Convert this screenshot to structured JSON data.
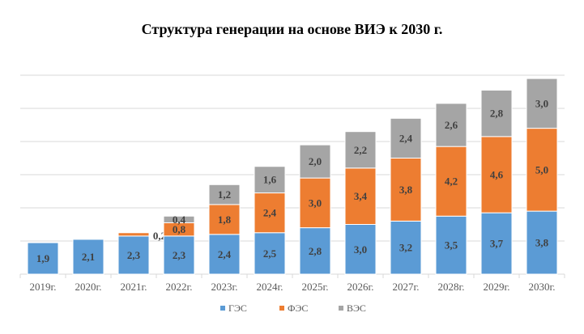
{
  "chart_data": {
    "type": "bar",
    "stacked": true,
    "title": "Структура генерации на основе ВИЭ к 2030 г.",
    "categories": [
      "2019г.",
      "2020г.",
      "2021г.",
      "2022г.",
      "2023г.",
      "2024г.",
      "2025г.",
      "2026г.",
      "2027г.",
      "2028г.",
      "2029г.",
      "2030г."
    ],
    "series": [
      {
        "name": "ГЭС",
        "color": "#5B9BD5",
        "values": [
          1.9,
          2.1,
          2.3,
          2.3,
          2.4,
          2.5,
          2.8,
          3.0,
          3.2,
          3.5,
          3.7,
          3.8
        ],
        "labels": [
          "1,9",
          "2,1",
          "2,3",
          "2,3",
          "2,4",
          "2,5",
          "2,8",
          "3,0",
          "3,2",
          "3,5",
          "3,7",
          "3,8"
        ]
      },
      {
        "name": "ФЭС",
        "color": "#ED7D31",
        "values": [
          0,
          0,
          0.2,
          0.8,
          1.8,
          2.4,
          3.0,
          3.4,
          3.8,
          4.2,
          4.6,
          5.0
        ],
        "labels": [
          "",
          "",
          "0,2",
          "0,8",
          "1,8",
          "2,4",
          "3,0",
          "3,4",
          "3,8",
          "4,2",
          "4,6",
          "5,0"
        ]
      },
      {
        "name": "ВЭС",
        "color": "#A5A5A5",
        "values": [
          0,
          0,
          0,
          0.4,
          1.2,
          1.6,
          2.0,
          2.2,
          2.4,
          2.6,
          2.8,
          3.0
        ],
        "labels": [
          "",
          "",
          "",
          "0,4",
          "1,2",
          "1,6",
          "2,0",
          "2,2",
          "2,4",
          "2,6",
          "2,8",
          "3,0"
        ]
      }
    ],
    "ylim": [
      0,
      12
    ],
    "ygrid_step": 2,
    "grid": true,
    "y_tick_labels_shown": false,
    "legend": "bottom"
  }
}
